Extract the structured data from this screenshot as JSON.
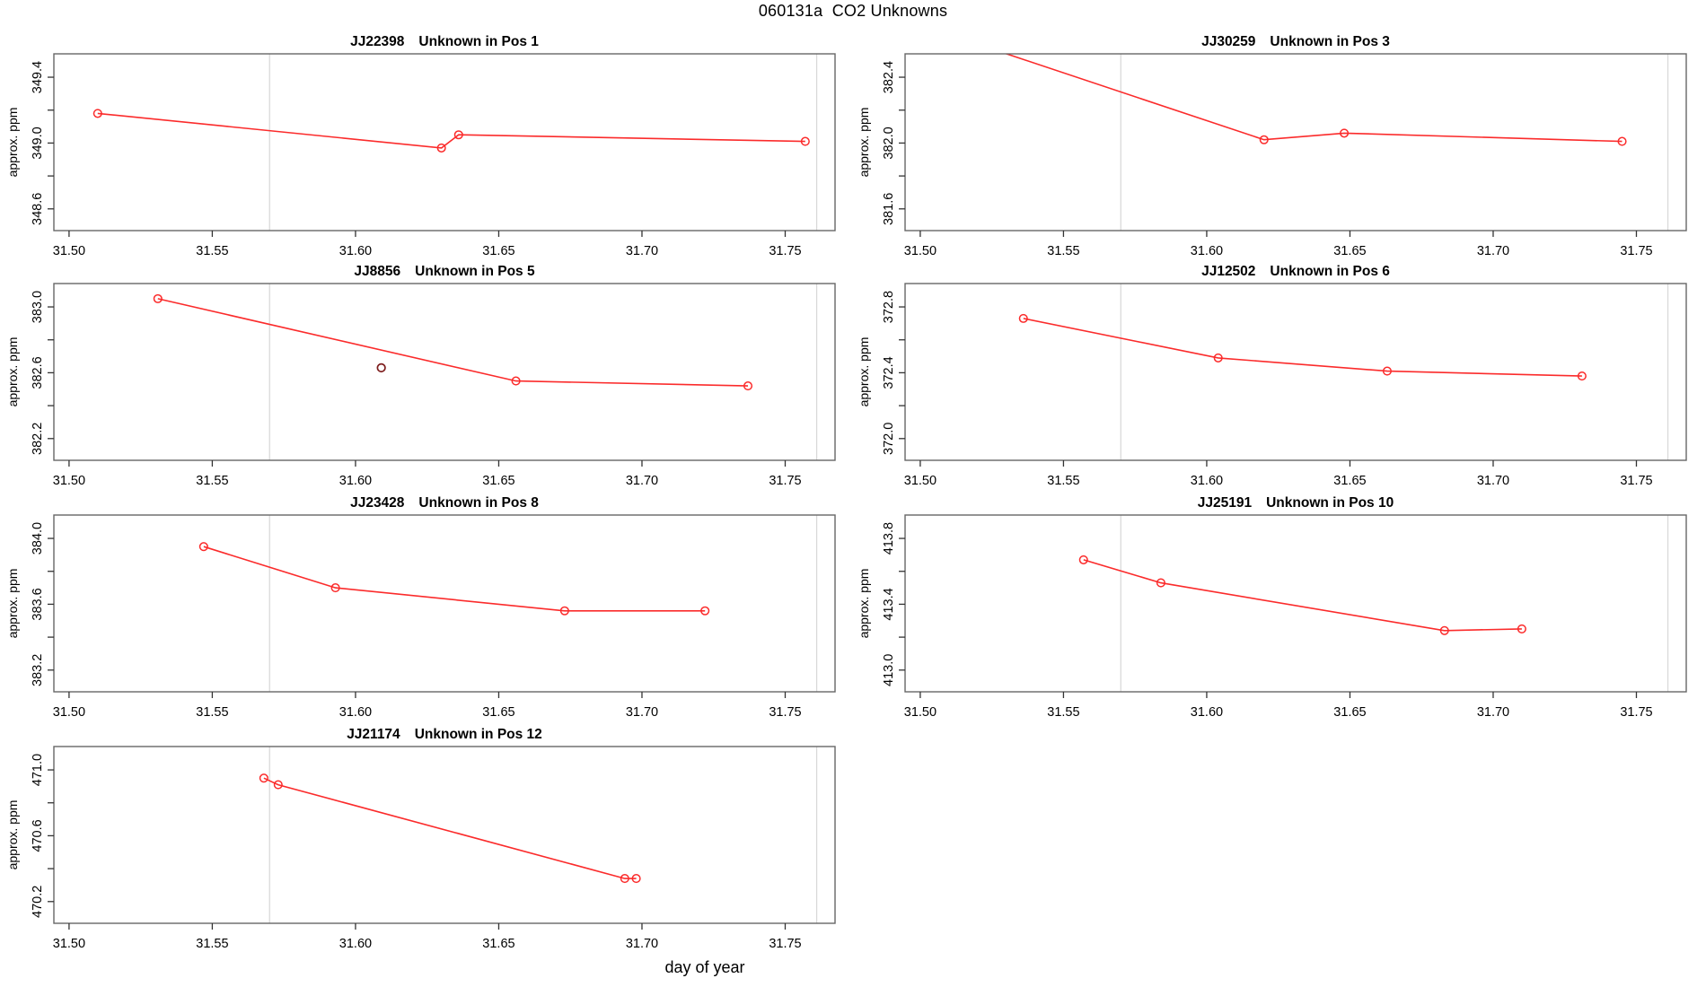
{
  "title": "060131a  CO2 Unknowns",
  "xlabel": "day of year",
  "ylabel": "approx. ppm",
  "colors": {
    "series_line": "#fb2b2b",
    "marker_stroke": "#fb2b2b",
    "outlier_stroke": "#7d1d1d",
    "reference_line": "#d8d8d8",
    "plot_border": "#666666",
    "tick": "#333333",
    "text": "#000000"
  },
  "chart_data": [
    {
      "type": "line",
      "sample_id": "JJ22398",
      "position_label": "Unknown in Pos 1",
      "title": "JJ22398    Unknown in Pos 1",
      "grid_slot": {
        "row": 0,
        "col": 0
      },
      "ylabel": "approx. ppm",
      "xlabel": "day of year",
      "x_ticks": [
        31.5,
        31.55,
        31.6,
        31.65,
        31.7,
        31.75
      ],
      "y_ticks_labeled": [
        348.6,
        349.0,
        349.4
      ],
      "y_tick_step": 0.2,
      "xlim": [
        31.4947,
        31.7674
      ],
      "ylim": [
        348.468,
        349.542
      ],
      "vlines": [
        31.57,
        31.761
      ],
      "points": [
        [
          31.51,
          349.18
        ],
        [
          31.63,
          348.97
        ],
        [
          31.636,
          349.05
        ],
        [
          31.757,
          349.01
        ]
      ],
      "outlier_points": []
    },
    {
      "type": "line",
      "sample_id": "JJ30259",
      "position_label": "Unknown in Pos 3",
      "title": "JJ30259    Unknown in Pos 3",
      "grid_slot": {
        "row": 0,
        "col": 1
      },
      "ylabel": "approx. ppm",
      "xlabel": "day of year",
      "x_ticks": [
        31.5,
        31.55,
        31.6,
        31.65,
        31.7,
        31.75
      ],
      "y_ticks_labeled": [
        381.6,
        382.0,
        382.4
      ],
      "y_tick_step": 0.2,
      "xlim": [
        31.4947,
        31.7674
      ],
      "ylim": [
        381.468,
        382.542
      ],
      "vlines": [
        31.57,
        31.761
      ],
      "points": [
        [
          31.515,
          382.63
        ],
        [
          31.62,
          382.02
        ],
        [
          31.648,
          382.06
        ],
        [
          31.745,
          382.01
        ]
      ],
      "outlier_points": []
    },
    {
      "type": "line",
      "sample_id": "JJ8856",
      "position_label": "Unknown in Pos 5",
      "title": "JJ8856    Unknown in Pos 5",
      "grid_slot": {
        "row": 1,
        "col": 0
      },
      "ylabel": "approx. ppm",
      "xlabel": "day of year",
      "x_ticks": [
        31.5,
        31.55,
        31.6,
        31.65,
        31.7,
        31.75
      ],
      "y_ticks_labeled": [
        382.2,
        382.6,
        383.0
      ],
      "y_tick_step": 0.2,
      "xlim": [
        31.4947,
        31.7674
      ],
      "ylim": [
        382.068,
        383.142
      ],
      "vlines": [
        31.57,
        31.761
      ],
      "points": [
        [
          31.531,
          383.05
        ],
        [
          31.656,
          382.55
        ],
        [
          31.737,
          382.52
        ]
      ],
      "outlier_points": [
        [
          31.609,
          382.63
        ]
      ]
    },
    {
      "type": "line",
      "sample_id": "JJ12502",
      "position_label": "Unknown in Pos 6",
      "title": "JJ12502    Unknown in Pos 6",
      "grid_slot": {
        "row": 1,
        "col": 1
      },
      "ylabel": "approx. ppm",
      "xlabel": "day of year",
      "x_ticks": [
        31.5,
        31.55,
        31.6,
        31.65,
        31.7,
        31.75
      ],
      "y_ticks_labeled": [
        372.0,
        372.4,
        372.8
      ],
      "y_tick_step": 0.2,
      "xlim": [
        31.4947,
        31.7674
      ],
      "ylim": [
        371.868,
        372.942
      ],
      "vlines": [
        31.57,
        31.761
      ],
      "points": [
        [
          31.536,
          372.73
        ],
        [
          31.604,
          372.49
        ],
        [
          31.663,
          372.41
        ],
        [
          31.731,
          372.38
        ]
      ],
      "outlier_points": []
    },
    {
      "type": "line",
      "sample_id": "JJ23428",
      "position_label": "Unknown in Pos 8",
      "title": "JJ23428    Unknown in Pos 8",
      "grid_slot": {
        "row": 2,
        "col": 0
      },
      "ylabel": "approx. ppm",
      "xlabel": "day of year",
      "x_ticks": [
        31.5,
        31.55,
        31.6,
        31.65,
        31.7,
        31.75
      ],
      "y_ticks_labeled": [
        383.2,
        383.6,
        384.0
      ],
      "y_tick_step": 0.2,
      "xlim": [
        31.4947,
        31.7674
      ],
      "ylim": [
        383.068,
        384.142
      ],
      "vlines": [
        31.57,
        31.761
      ],
      "points": [
        [
          31.547,
          383.95
        ],
        [
          31.593,
          383.7
        ],
        [
          31.673,
          383.56
        ],
        [
          31.722,
          383.56
        ]
      ],
      "outlier_points": []
    },
    {
      "type": "line",
      "sample_id": "JJ25191",
      "position_label": "Unknown in Pos 10",
      "title": "JJ25191    Unknown in Pos 10",
      "grid_slot": {
        "row": 2,
        "col": 1
      },
      "ylabel": "approx. ppm",
      "xlabel": "day of year",
      "x_ticks": [
        31.5,
        31.55,
        31.6,
        31.65,
        31.7,
        31.75
      ],
      "y_ticks_labeled": [
        413.0,
        413.4,
        413.8
      ],
      "y_tick_step": 0.2,
      "xlim": [
        31.4947,
        31.7674
      ],
      "ylim": [
        412.868,
        413.942
      ],
      "vlines": [
        31.57,
        31.761
      ],
      "points": [
        [
          31.557,
          413.67
        ],
        [
          31.584,
          413.53
        ],
        [
          31.683,
          413.24
        ],
        [
          31.71,
          413.25
        ]
      ],
      "outlier_points": []
    },
    {
      "type": "line",
      "sample_id": "JJ21174",
      "position_label": "Unknown in Pos 12",
      "title": "JJ21174    Unknown in Pos 12",
      "grid_slot": {
        "row": 3,
        "col": 0
      },
      "ylabel": "approx. ppm",
      "xlabel": "day of year",
      "x_ticks": [
        31.5,
        31.55,
        31.6,
        31.65,
        31.7,
        31.75
      ],
      "y_ticks_labeled": [
        470.2,
        470.6,
        471.0
      ],
      "y_tick_step": 0.2,
      "xlim": [
        31.4947,
        31.7674
      ],
      "ylim": [
        470.068,
        471.142
      ],
      "vlines": [
        31.57,
        31.761
      ],
      "points": [
        [
          31.568,
          470.95
        ],
        [
          31.573,
          470.91
        ],
        [
          31.694,
          470.34
        ],
        [
          31.698,
          470.34
        ]
      ],
      "outlier_points": []
    }
  ]
}
